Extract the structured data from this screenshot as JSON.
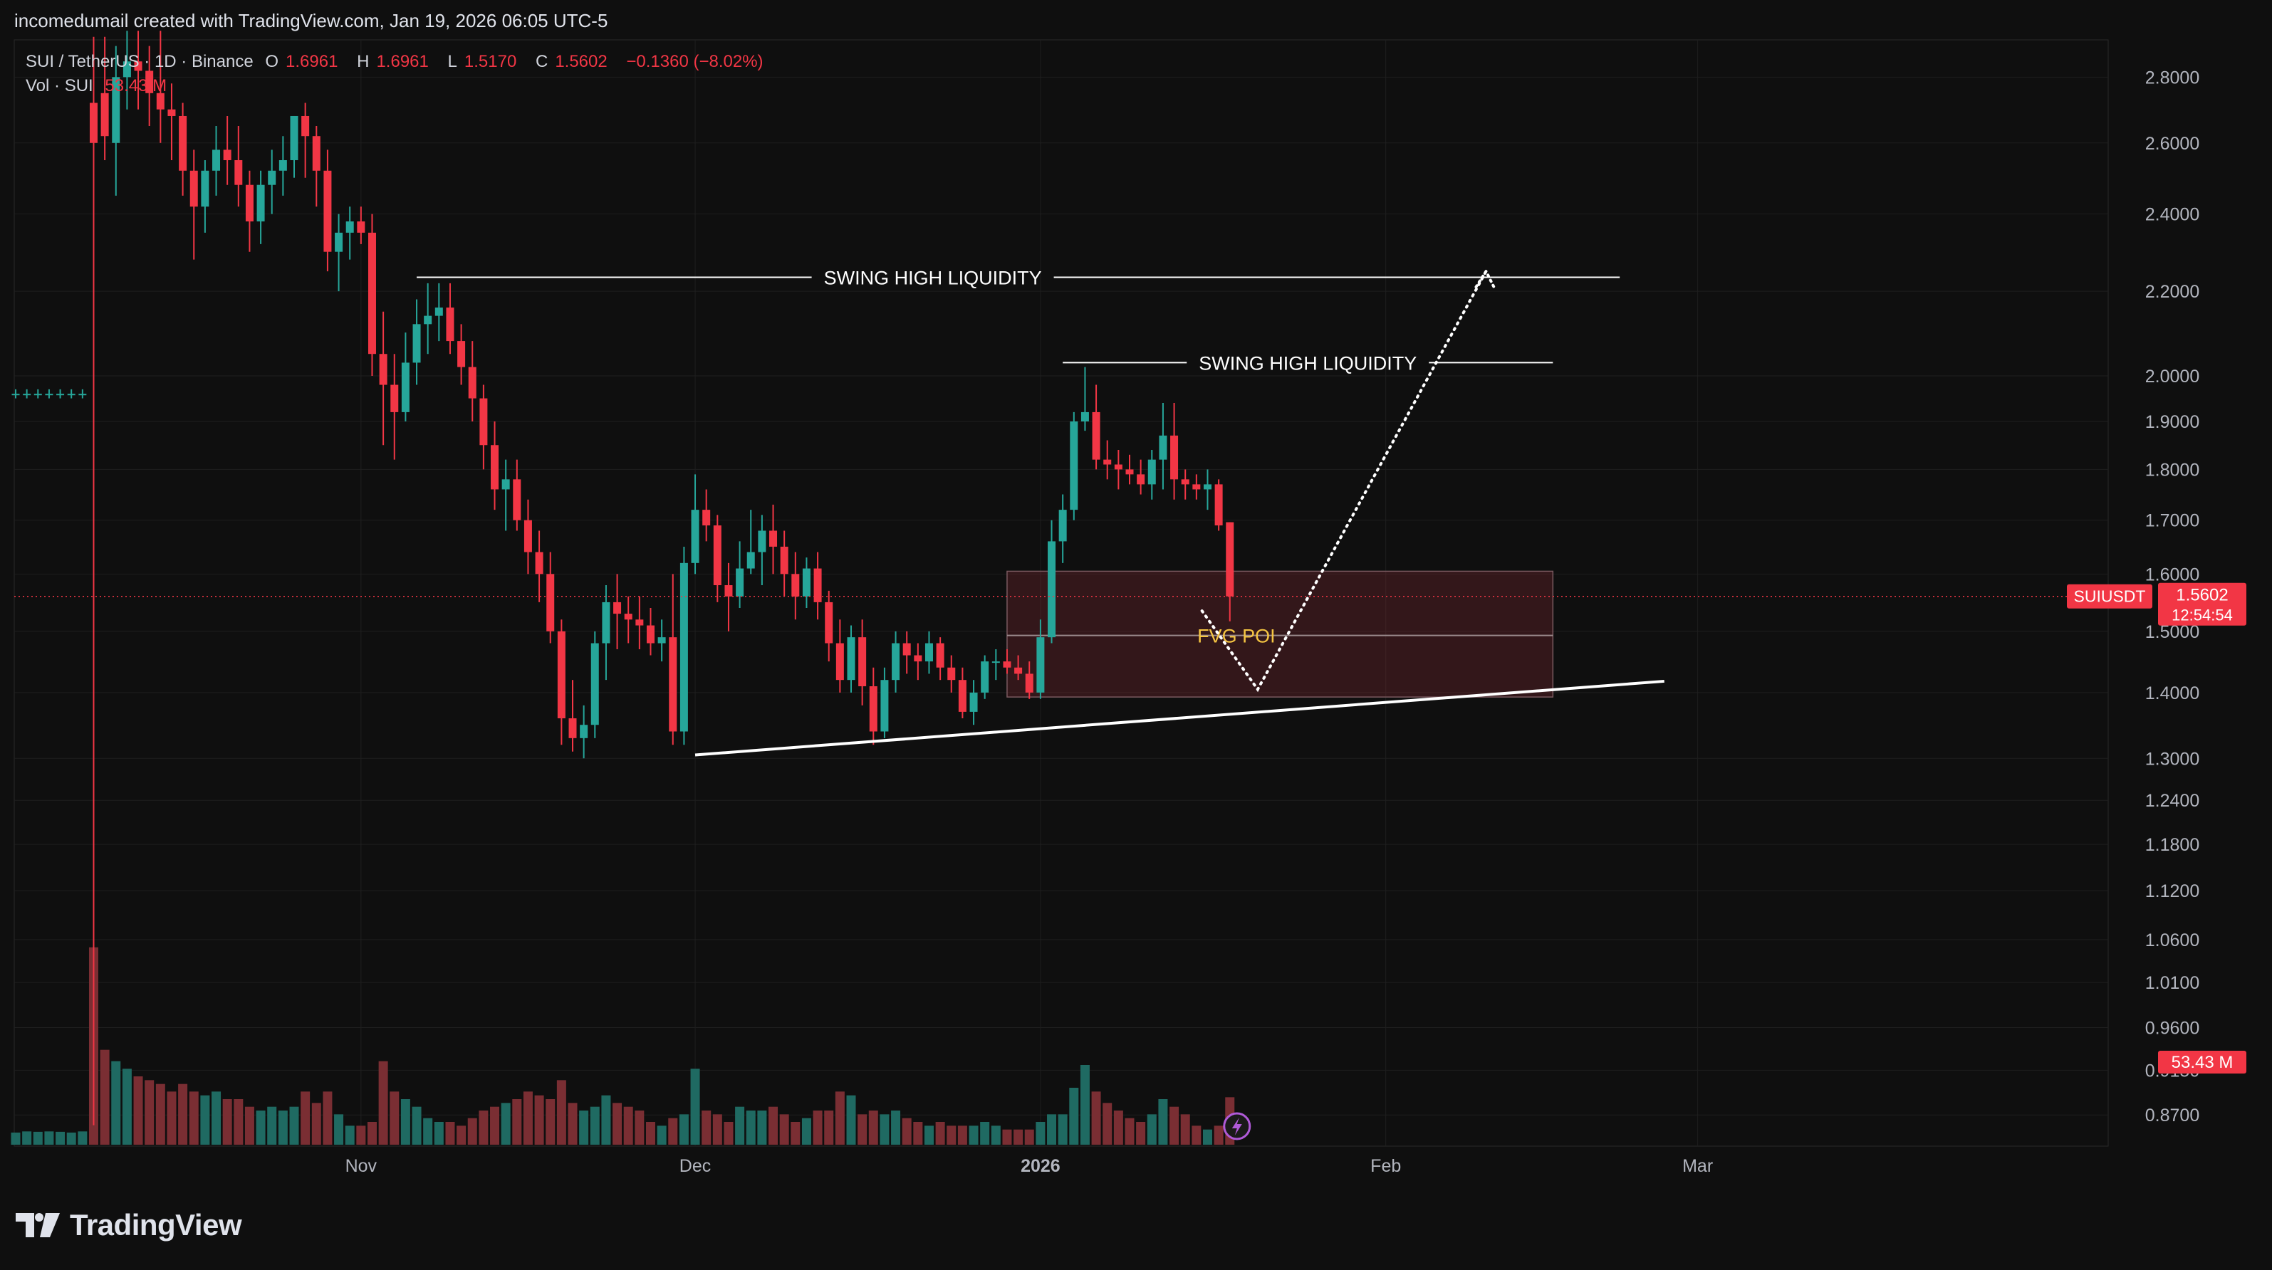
{
  "header": {
    "credit": "incomedumail created with TradingView.com, Jan 19, 2026 06:05 UTC-5"
  },
  "legend": {
    "symbol": "SUI / TetherUS · 1D · Binance",
    "open_label": "O",
    "open": "1.6961",
    "high_label": "H",
    "high": "1.6961",
    "low_label": "L",
    "low": "1.5170",
    "close_label": "C",
    "close": "1.5602",
    "change": "−0.1360 (−8.02%)",
    "volume_label": "Vol · SUI",
    "volume": "53.43 M"
  },
  "price_badge": {
    "ticker": "SUIUSDT",
    "price": "1.5602",
    "countdown": "12:54:54",
    "volume": "53.43 M"
  },
  "annotations": {
    "swing_high_1": "SWING HIGH LIQUIDITY",
    "swing_high_2": "SWING HIGH LIQUIDITY",
    "fvg": "FVG POI"
  },
  "brand": {
    "name": "TradingView"
  },
  "colors": {
    "up": "#26a69a",
    "down": "#f23645",
    "vol_up": "#1f6a62",
    "vol_down": "#7a2e33",
    "background": "#0f0f0f",
    "grid": "#1f1f1f",
    "fvg_label": "#f5c542",
    "line": "#ffffff"
  },
  "chart_data": {
    "type": "candlestick",
    "symbol": "SUIUSDT",
    "timeframe": "1D",
    "scale": "log",
    "ylim": [
      0.84,
      2.92
    ],
    "y_ticks": [
      2.8,
      2.6,
      2.4,
      2.2,
      2.0,
      1.9,
      1.8,
      1.7,
      1.6,
      1.5,
      1.4,
      1.3,
      1.24,
      1.18,
      1.12,
      1.06,
      1.01,
      0.96,
      0.915,
      0.87
    ],
    "y_tick_labels": [
      "2.8000",
      "2.6000",
      "2.4000",
      "2.2000",
      "2.0000",
      "1.9000",
      "1.8000",
      "1.7000",
      "1.6000",
      "1.5000",
      "1.4000",
      "1.3000",
      "1.2400",
      "1.1800",
      "1.1200",
      "1.0600",
      "1.0100",
      "0.9600",
      "0.9150",
      "0.8700"
    ],
    "x_labels": [
      {
        "label": "Nov",
        "index": 31
      },
      {
        "label": "Dec",
        "index": 61
      },
      {
        "label": "2026",
        "index": 92
      },
      {
        "label": "Feb",
        "index": 123
      },
      {
        "label": "Mar",
        "index": 151
      }
    ],
    "volume_max": 75,
    "candles": [
      [
        1.96,
        1.97,
        1.95,
        1.96,
        3.2
      ],
      [
        1.96,
        1.97,
        1.95,
        1.96,
        3.5
      ],
      [
        1.96,
        1.97,
        1.95,
        1.96,
        3.4
      ],
      [
        1.96,
        1.97,
        1.95,
        1.96,
        3.5
      ],
      [
        1.96,
        1.97,
        1.95,
        1.96,
        3.4
      ],
      [
        1.96,
        1.97,
        1.95,
        1.96,
        3.2
      ],
      [
        1.96,
        1.97,
        1.95,
        1.96,
        3.5
      ],
      [
        2.72,
        2.93,
        0.86,
        2.6,
        52
      ],
      [
        2.75,
        2.93,
        2.55,
        2.62,
        25
      ],
      [
        2.6,
        2.9,
        2.45,
        2.8,
        22
      ],
      [
        2.8,
        2.95,
        2.7,
        2.85,
        20
      ],
      [
        2.85,
        2.95,
        2.7,
        2.82,
        18
      ],
      [
        2.82,
        2.9,
        2.65,
        2.75,
        17
      ],
      [
        2.75,
        2.95,
        2.6,
        2.7,
        16
      ],
      [
        2.7,
        2.78,
        2.55,
        2.68,
        14
      ],
      [
        2.68,
        2.72,
        2.45,
        2.52,
        16
      ],
      [
        2.52,
        2.58,
        2.28,
        2.42,
        14
      ],
      [
        2.42,
        2.55,
        2.35,
        2.52,
        13
      ],
      [
        2.52,
        2.65,
        2.45,
        2.58,
        14
      ],
      [
        2.58,
        2.68,
        2.48,
        2.55,
        12
      ],
      [
        2.55,
        2.65,
        2.42,
        2.48,
        12
      ],
      [
        2.48,
        2.52,
        2.3,
        2.38,
        10
      ],
      [
        2.38,
        2.52,
        2.32,
        2.48,
        9
      ],
      [
        2.48,
        2.58,
        2.4,
        2.52,
        10
      ],
      [
        2.52,
        2.62,
        2.45,
        2.55,
        9
      ],
      [
        2.55,
        2.68,
        2.5,
        2.68,
        10
      ],
      [
        2.68,
        2.72,
        2.5,
        2.62,
        14
      ],
      [
        2.62,
        2.65,
        2.42,
        2.52,
        11
      ],
      [
        2.52,
        2.58,
        2.25,
        2.3,
        14
      ],
      [
        2.3,
        2.4,
        2.2,
        2.35,
        8
      ],
      [
        2.35,
        2.42,
        2.28,
        2.38,
        5
      ],
      [
        2.38,
        2.42,
        2.32,
        2.35,
        5
      ],
      [
        2.35,
        2.4,
        2.0,
        2.05,
        6
      ],
      [
        2.05,
        2.15,
        1.85,
        1.98,
        22
      ],
      [
        1.98,
        2.05,
        1.82,
        1.92,
        14
      ],
      [
        1.92,
        2.1,
        1.9,
        2.03,
        12
      ],
      [
        2.03,
        2.18,
        1.98,
        2.12,
        10
      ],
      [
        2.12,
        2.22,
        2.05,
        2.14,
        7
      ],
      [
        2.14,
        2.22,
        2.08,
        2.16,
        6
      ],
      [
        2.16,
        2.22,
        2.05,
        2.08,
        6
      ],
      [
        2.08,
        2.12,
        1.98,
        2.02,
        5
      ],
      [
        2.02,
        2.08,
        1.9,
        1.95,
        7
      ],
      [
        1.95,
        1.98,
        1.8,
        1.85,
        9
      ],
      [
        1.85,
        1.9,
        1.72,
        1.76,
        10
      ],
      [
        1.76,
        1.82,
        1.68,
        1.78,
        11
      ],
      [
        1.78,
        1.82,
        1.68,
        1.7,
        12
      ],
      [
        1.7,
        1.74,
        1.6,
        1.64,
        14
      ],
      [
        1.64,
        1.68,
        1.55,
        1.6,
        13
      ],
      [
        1.6,
        1.64,
        1.48,
        1.5,
        12
      ],
      [
        1.5,
        1.52,
        1.32,
        1.36,
        17
      ],
      [
        1.36,
        1.42,
        1.31,
        1.33,
        11
      ],
      [
        1.33,
        1.38,
        1.3,
        1.35,
        9
      ],
      [
        1.35,
        1.5,
        1.33,
        1.48,
        10
      ],
      [
        1.48,
        1.58,
        1.42,
        1.55,
        13
      ],
      [
        1.55,
        1.6,
        1.47,
        1.53,
        11
      ],
      [
        1.53,
        1.56,
        1.48,
        1.52,
        10
      ],
      [
        1.52,
        1.56,
        1.47,
        1.51,
        9
      ],
      [
        1.51,
        1.54,
        1.46,
        1.48,
        6
      ],
      [
        1.48,
        1.52,
        1.45,
        1.49,
        5
      ],
      [
        1.49,
        1.6,
        1.32,
        1.34,
        7
      ],
      [
        1.34,
        1.65,
        1.32,
        1.62,
        8
      ],
      [
        1.62,
        1.79,
        1.6,
        1.72,
        20
      ],
      [
        1.72,
        1.76,
        1.66,
        1.69,
        9
      ],
      [
        1.69,
        1.71,
        1.55,
        1.58,
        8
      ],
      [
        1.58,
        1.62,
        1.5,
        1.56,
        6
      ],
      [
        1.56,
        1.66,
        1.54,
        1.61,
        10
      ],
      [
        1.61,
        1.72,
        1.6,
        1.64,
        9
      ],
      [
        1.64,
        1.71,
        1.58,
        1.68,
        9
      ],
      [
        1.68,
        1.73,
        1.6,
        1.65,
        10
      ],
      [
        1.65,
        1.68,
        1.56,
        1.6,
        8
      ],
      [
        1.6,
        1.64,
        1.52,
        1.56,
        6
      ],
      [
        1.56,
        1.63,
        1.54,
        1.61,
        7
      ],
      [
        1.61,
        1.64,
        1.52,
        1.55,
        9
      ],
      [
        1.55,
        1.57,
        1.45,
        1.48,
        9
      ],
      [
        1.48,
        1.52,
        1.4,
        1.42,
        14
      ],
      [
        1.42,
        1.51,
        1.4,
        1.49,
        13
      ],
      [
        1.49,
        1.52,
        1.38,
        1.41,
        8
      ],
      [
        1.41,
        1.44,
        1.32,
        1.34,
        9
      ],
      [
        1.34,
        1.44,
        1.33,
        1.42,
        8
      ],
      [
        1.42,
        1.5,
        1.4,
        1.48,
        9
      ],
      [
        1.48,
        1.5,
        1.43,
        1.46,
        7
      ],
      [
        1.46,
        1.48,
        1.42,
        1.45,
        6
      ],
      [
        1.45,
        1.5,
        1.43,
        1.48,
        5
      ],
      [
        1.48,
        1.49,
        1.42,
        1.44,
        6
      ],
      [
        1.44,
        1.46,
        1.4,
        1.42,
        5
      ],
      [
        1.42,
        1.44,
        1.36,
        1.37,
        5
      ],
      [
        1.37,
        1.42,
        1.35,
        1.4,
        5
      ],
      [
        1.4,
        1.46,
        1.39,
        1.45,
        6
      ],
      [
        1.45,
        1.47,
        1.42,
        1.45,
        5
      ],
      [
        1.45,
        1.47,
        1.43,
        1.44,
        4
      ],
      [
        1.44,
        1.46,
        1.42,
        1.43,
        4
      ],
      [
        1.43,
        1.45,
        1.39,
        1.4,
        4
      ],
      [
        1.4,
        1.52,
        1.39,
        1.49,
        6
      ],
      [
        1.49,
        1.7,
        1.48,
        1.66,
        8
      ],
      [
        1.66,
        1.75,
        1.62,
        1.72,
        8
      ],
      [
        1.72,
        1.92,
        1.7,
        1.9,
        15
      ],
      [
        1.9,
        2.02,
        1.88,
        1.92,
        21
      ],
      [
        1.92,
        1.98,
        1.8,
        1.82,
        14
      ],
      [
        1.82,
        1.86,
        1.78,
        1.81,
        11
      ],
      [
        1.81,
        1.84,
        1.76,
        1.8,
        9
      ],
      [
        1.8,
        1.83,
        1.77,
        1.79,
        7
      ],
      [
        1.79,
        1.82,
        1.75,
        1.77,
        6
      ],
      [
        1.77,
        1.84,
        1.74,
        1.82,
        8
      ],
      [
        1.82,
        1.94,
        1.76,
        1.87,
        12
      ],
      [
        1.87,
        1.94,
        1.74,
        1.78,
        10
      ],
      [
        1.78,
        1.8,
        1.74,
        1.77,
        8
      ],
      [
        1.77,
        1.79,
        1.74,
        1.76,
        5
      ],
      [
        1.76,
        1.8,
        1.72,
        1.77,
        4
      ],
      [
        1.77,
        1.78,
        1.68,
        1.69,
        5
      ],
      [
        1.6961,
        1.6961,
        1.517,
        1.5602,
        12.5
      ]
    ],
    "horizontal_lines": [
      {
        "label": "SWING HIGH LIQUIDITY",
        "price": 2.235,
        "from_index": 36,
        "to_index": 144
      },
      {
        "label": "SWING HIGH LIQUIDITY",
        "price": 2.03,
        "from_index": 94,
        "to_index": 138
      }
    ],
    "zones": [
      {
        "label": "FVG POI",
        "from_index": 89,
        "to_index": 138,
        "top": 1.605,
        "bottom": 1.393,
        "mid": 1.493
      }
    ],
    "trendline": {
      "from": {
        "index": 61,
        "price": 1.305
      },
      "to": {
        "index": 148,
        "price": 1.418
      }
    },
    "projection": [
      {
        "index": 106.5,
        "price": 1.535
      },
      {
        "index": 111.5,
        "price": 1.405
      },
      {
        "index": 132,
        "price": 2.25
      }
    ],
    "last_price": 1.5602
  }
}
